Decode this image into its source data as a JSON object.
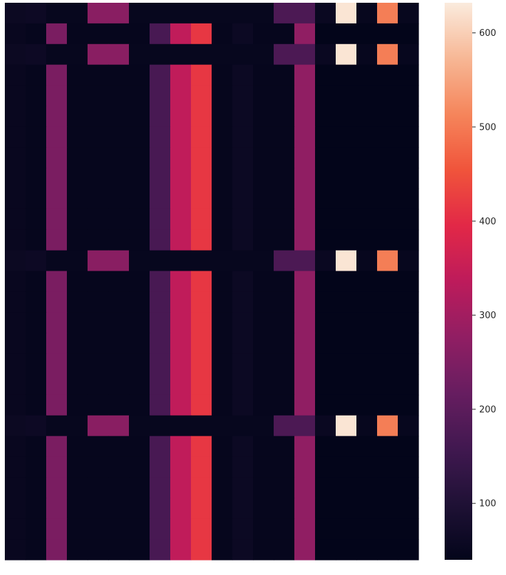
{
  "chart_data": {
    "type": "heatmap",
    "title": "",
    "xlabel": "",
    "ylabel": "",
    "x_tick_labels": [],
    "y_tick_labels": [],
    "n_rows": 27,
    "n_cols": 20,
    "colormap": "rocket",
    "vmin": 40,
    "vmax": 632,
    "colorbar_ticks": [
      100,
      200,
      300,
      400,
      500,
      600
    ],
    "colorbar_tick_labels": [
      "100",
      "200",
      "300",
      "400",
      "500",
      "600"
    ],
    "row_types": [
      "A",
      "B",
      "A",
      "B",
      "B",
      "B",
      "B",
      "B",
      "B",
      "B",
      "B",
      "B",
      "A",
      "B",
      "B",
      "B",
      "B",
      "B",
      "B",
      "B",
      "A",
      "B",
      "B",
      "B",
      "B",
      "B",
      "B"
    ],
    "row_patterns": {
      "A": [
        58,
        62,
        48,
        48,
        265,
        265,
        48,
        48,
        48,
        48,
        48,
        48,
        48,
        175,
        175,
        55,
        625,
        48,
        505,
        48
      ],
      "B": [
        52,
        46,
        245,
        46,
        46,
        46,
        46,
        170,
        340,
        415,
        46,
        60,
        46,
        46,
        275,
        40,
        40,
        40,
        40,
        40
      ]
    }
  }
}
